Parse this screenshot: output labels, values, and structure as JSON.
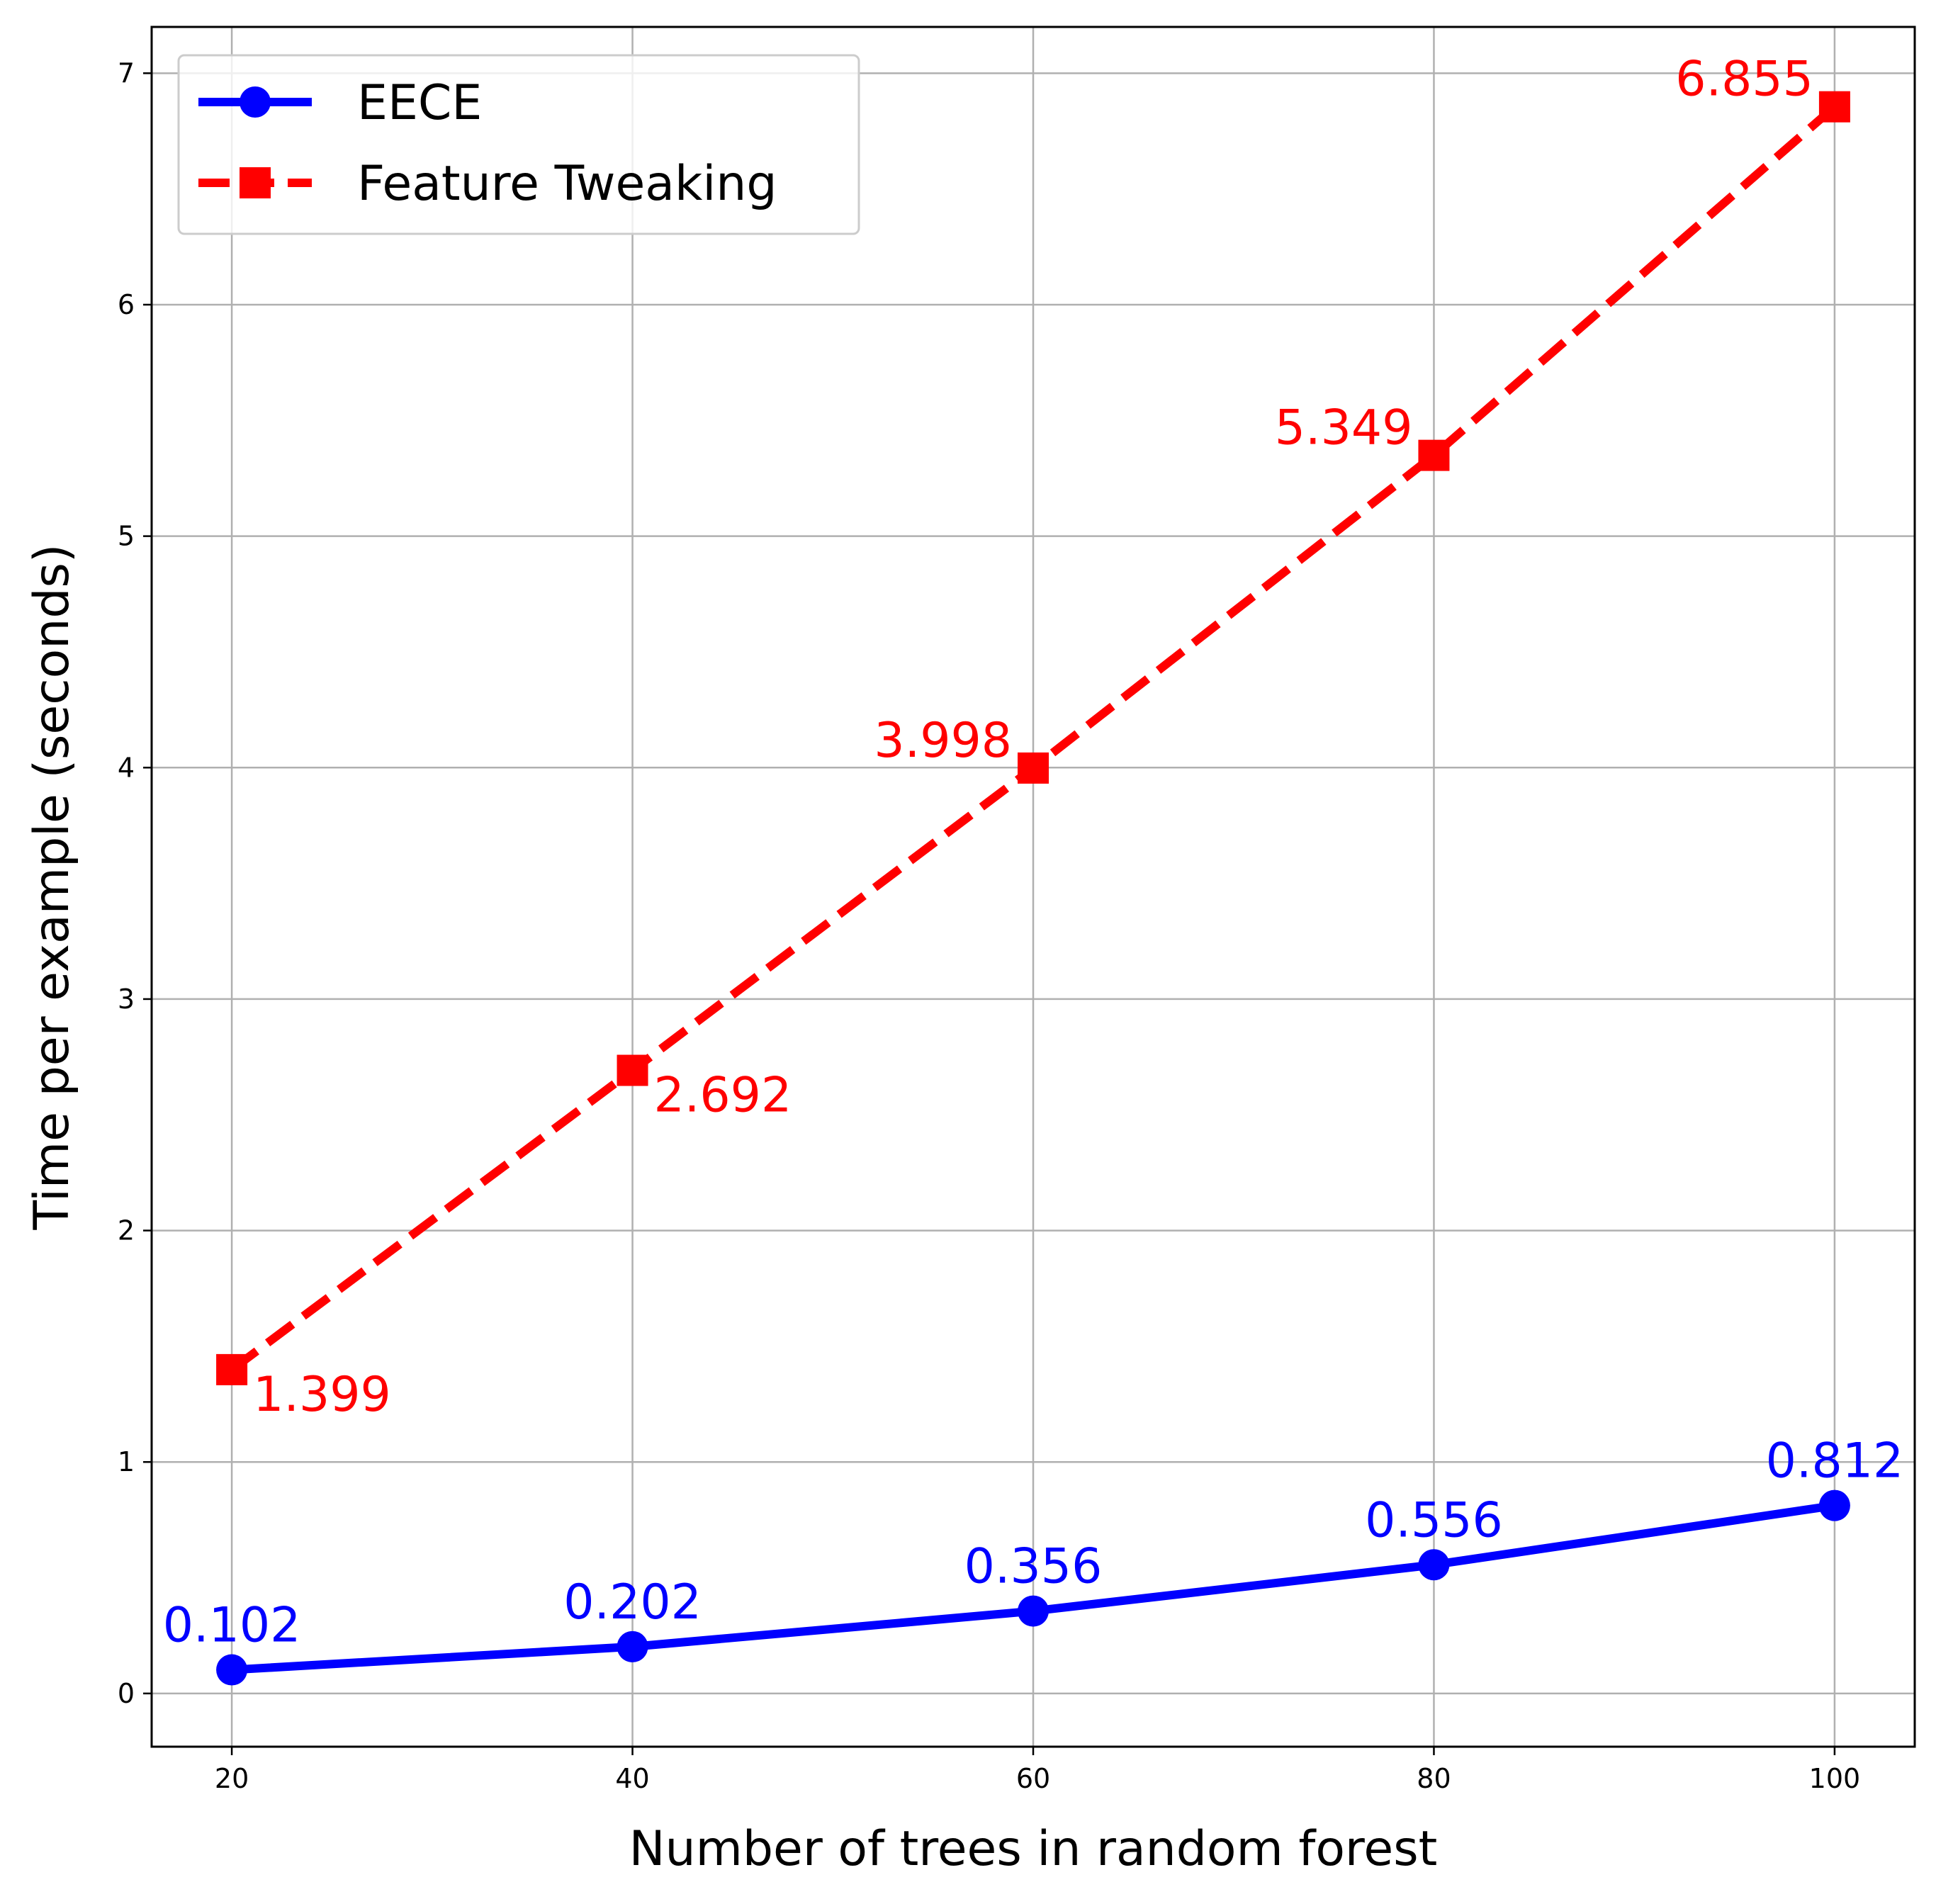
{
  "chart_data": {
    "type": "line",
    "title": "",
    "xlabel": "Number of trees in random forest",
    "ylabel": "Time per example (seconds)",
    "x": [
      20,
      40,
      60,
      80,
      100
    ],
    "xticks": [
      "20",
      "40",
      "60",
      "80",
      "100"
    ],
    "yticks": [
      "0",
      "1",
      "2",
      "3",
      "4",
      "5",
      "6",
      "7"
    ],
    "xlim": [
      16,
      104
    ],
    "ylim": [
      -0.23,
      7.2
    ],
    "grid": true,
    "legend_position": "top-left",
    "series": [
      {
        "name": "EECE",
        "values": [
          0.102,
          0.202,
          0.356,
          0.556,
          0.812
        ],
        "labels": [
          "0.102",
          "0.202",
          "0.356",
          "0.556",
          "0.812"
        ],
        "color": "#0000ff",
        "line_style": "solid",
        "marker": "circle"
      },
      {
        "name": "Feature Tweaking",
        "values": [
          1.399,
          2.692,
          3.998,
          5.349,
          6.855
        ],
        "labels": [
          "1.399",
          "2.692",
          "3.998",
          "5.349",
          "6.855"
        ],
        "color": "#ff0000",
        "line_style": "dashed",
        "marker": "square"
      }
    ]
  }
}
